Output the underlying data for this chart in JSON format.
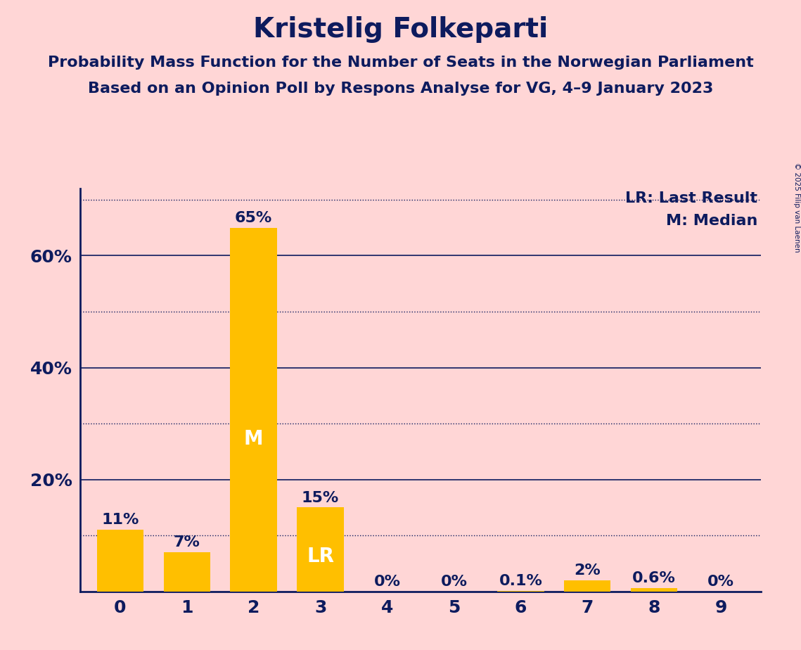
{
  "title": "Kristelig Folkeparti",
  "subtitle1": "Probability Mass Function for the Number of Seats in the Norwegian Parliament",
  "subtitle2": "Based on an Opinion Poll by Respons Analyse for VG, 4–9 January 2023",
  "copyright": "© 2025 Filip van Laenen",
  "categories": [
    0,
    1,
    2,
    3,
    4,
    5,
    6,
    7,
    8,
    9
  ],
  "values": [
    0.11,
    0.07,
    0.65,
    0.15,
    0.0,
    0.0,
    0.001,
    0.02,
    0.006,
    0.0
  ],
  "bar_labels": [
    "11%",
    "7%",
    "65%",
    "15%",
    "0%",
    "0%",
    "0.1%",
    "2%",
    "0.6%",
    "0%"
  ],
  "bar_color": "#FFBF00",
  "bar_inner_labels": {
    "2": "M",
    "3": "LR"
  },
  "bar_inner_label_color": "#FFFFFF",
  "text_color": "#0D1B5E",
  "background_color": "#FFD6D6",
  "legend_lr": "LR: Last Result",
  "legend_m": "M: Median",
  "yticks": [
    0.2,
    0.4,
    0.6
  ],
  "ytick_labels": [
    "20%",
    "40%",
    "60%"
  ],
  "solid_gridlines": [
    0.2,
    0.4,
    0.6
  ],
  "dotted_gridlines": [
    0.1,
    0.3,
    0.5,
    0.7
  ],
  "ylim": [
    0,
    0.72
  ],
  "title_fontsize": 28,
  "subtitle_fontsize": 16,
  "tick_fontsize": 18,
  "bar_label_fontsize": 16,
  "inner_label_fontsize": 20,
  "legend_fontsize": 16,
  "ytick_fontsize": 18
}
